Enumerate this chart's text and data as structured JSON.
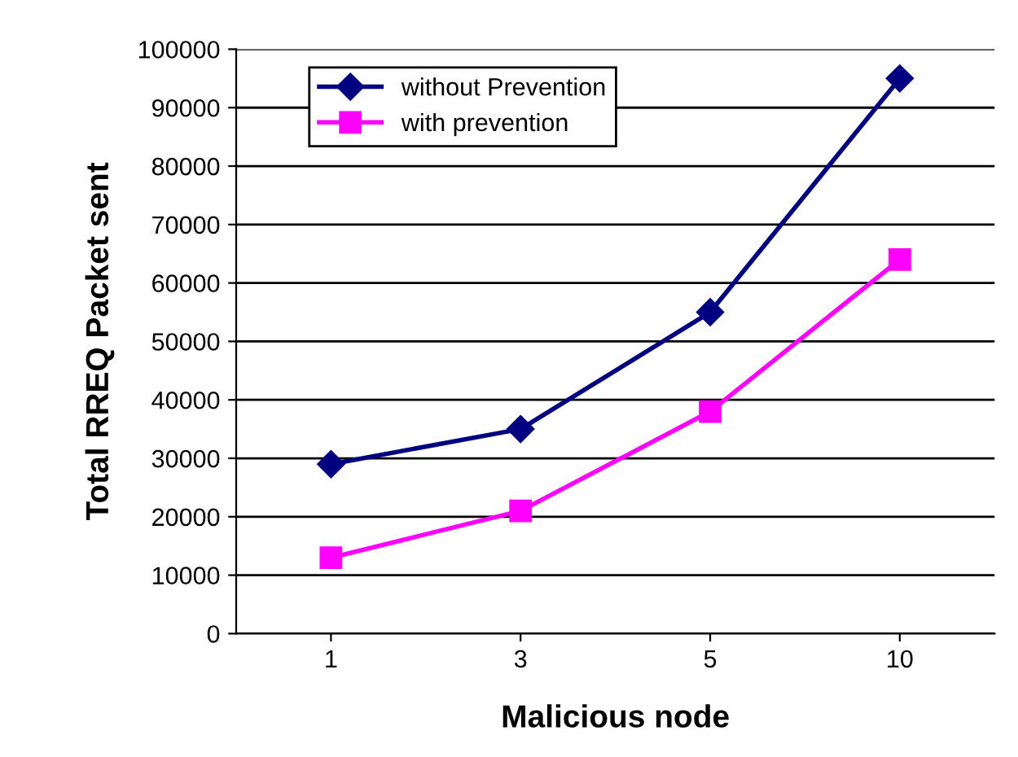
{
  "chart_data": {
    "type": "line",
    "xlabel": "Malicious node",
    "ylabel": "Total RREQ Packet sent",
    "categories": [
      "1",
      "3",
      "5",
      "10"
    ],
    "series": [
      {
        "name": "without Prevention",
        "color": "#000080",
        "marker": "diamond",
        "values": [
          29000,
          35000,
          55000,
          95000
        ]
      },
      {
        "name": "with prevention",
        "color": "#ff00ff",
        "marker": "square",
        "values": [
          13000,
          21000,
          38000,
          64000
        ]
      }
    ],
    "ylim": [
      0,
      100000
    ],
    "yticks": [
      0,
      10000,
      20000,
      30000,
      40000,
      50000,
      60000,
      70000,
      80000,
      90000,
      100000
    ],
    "grid": "y",
    "legend": "top left",
    "line_style": "solid"
  }
}
